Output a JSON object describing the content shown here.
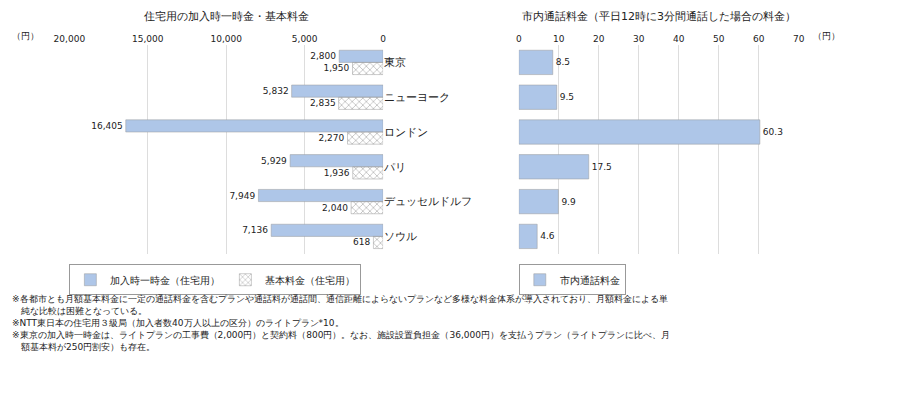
{
  "chart_data": [
    {
      "type": "bar",
      "orientation": "horizontal",
      "title": "住宅用の加入時一時金・基本料金",
      "xlabel": "（円）",
      "categories": [
        "東京",
        "ニューヨーク",
        "ロンドン",
        "パリ",
        "デュッセルドルフ",
        "ソウル"
      ],
      "series": [
        {
          "name": "加入時一時金（住宅用）",
          "color": "#aec6e8",
          "values": [
            2800,
            5832,
            16405,
            5929,
            7949,
            7136
          ],
          "value_labels": [
            "2,800",
            "5,832",
            "16,405",
            "5,929",
            "7,949",
            "7,136"
          ]
        },
        {
          "name": "基本料金（住宅用）",
          "color": "#f4b8b8",
          "values": [
            1950,
            2835,
            2270,
            1936,
            2040,
            618
          ],
          "value_labels": [
            "1,950",
            "2,835",
            "2,270",
            "1,936",
            "2,040",
            "618"
          ]
        }
      ],
      "xlim": [
        20000,
        0
      ],
      "xticks": [
        0,
        {
          "value": 5000,
          "label": "5,000"
        },
        {
          "value": 10000,
          "label": "10,000"
        },
        {
          "value": 15000,
          "label": "15,000"
        },
        {
          "value": 20000,
          "label": "20,000"
        }
      ],
      "grid": true,
      "data_labels": true,
      "legend": "bottom",
      "annotations": [
        "※各都市とも月額基本料金に一定の通話料金を含むプランや通話料が通話間、通信距離によらないプランなど多様な料金体系が導入されており、月額料金による単",
        "　純な比較は困難となっている。",
        "※NTT東日本の住宅用３級局（加入者数40万人以上の区分）のライトプラン*10。",
        "※東京の加入時一時金は、ライトプランの工事費（2,000円）と契約料（800円）。なお、施設設置負担金（36,000円）を支払うプラン（ライトプランに比べ、月",
        "　額基本料が250円割安）も存在。"
      ]
    },
    {
      "type": "bar",
      "orientation": "horizontal",
      "title": "市内通話料金（平日12時に3分間通話した場合の料金）",
      "xlabel": "（円）",
      "categories": [
        "東京",
        "ニューヨーク",
        "ロンドン",
        "パリ",
        "デュッセルドルフ",
        "ソウル"
      ],
      "series": [
        {
          "name": "市内通話料金",
          "color": "#aec6e8",
          "values": [
            8.5,
            9.5,
            60.3,
            17.5,
            9.9,
            4.6
          ]
        }
      ],
      "xlim": [
        0,
        70
      ],
      "xticks": [
        0,
        10,
        20,
        30,
        40,
        50,
        60,
        70
      ],
      "grid": true,
      "data_labels": true,
      "legend": "bottom",
      "tick_labels": "x"
    }
  ]
}
